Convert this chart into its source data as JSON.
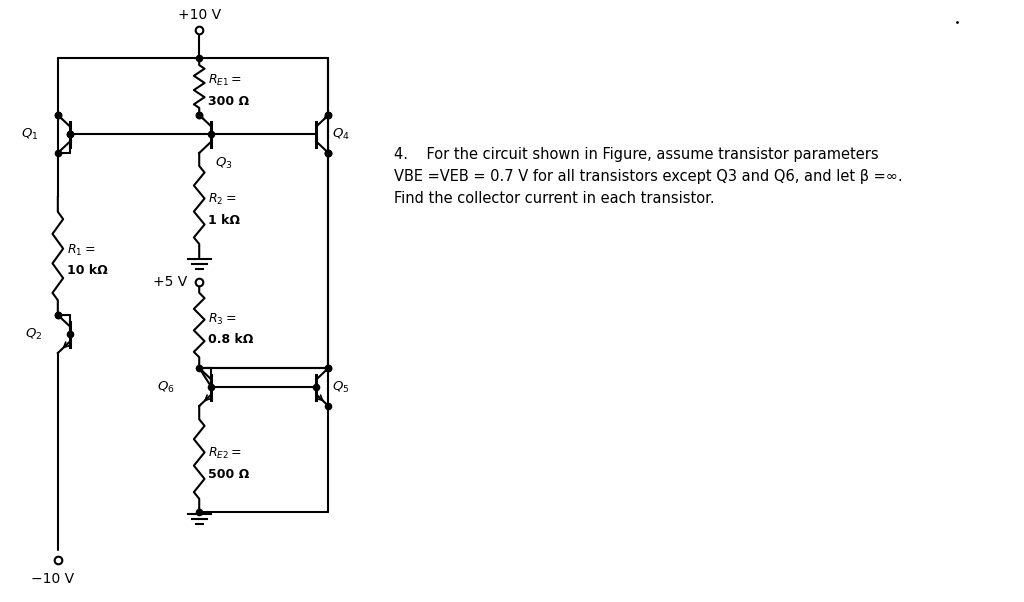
{
  "bg_color": "#ffffff",
  "line_color": "#000000",
  "problem_text": "4.    For the circuit shown in Figure, assume transistor parameters\nVBE =VEB = 0.7 V for all transistors except Q3 and Q6, and let β =∞.\nFind the collector current in each transistor.",
  "V_top": "+10 V",
  "V_mid": "+5 V",
  "V_bot": "−10 V",
  "RE1_label1": "$R_{E1}=$",
  "RE1_label2": "300 Ω",
  "R2_label1": "$R_2=$",
  "R2_label2": "1 kΩ",
  "R1_label1": "$R_1=$",
  "R1_label2": "10 kΩ",
  "R3_label1": "$R_3=$",
  "R3_label2": "0.8 kΩ",
  "RE2_label1": "$R_{E2}=$",
  "RE2_label2": "500 Ω",
  "Q1_label": "$Q_1$",
  "Q2_label": "$Q_2$",
  "Q3_label": "$Q_3$",
  "Q4_label": "$Q_4$",
  "Q5_label": "$Q_5$",
  "Q6_label": "$Q_6$"
}
